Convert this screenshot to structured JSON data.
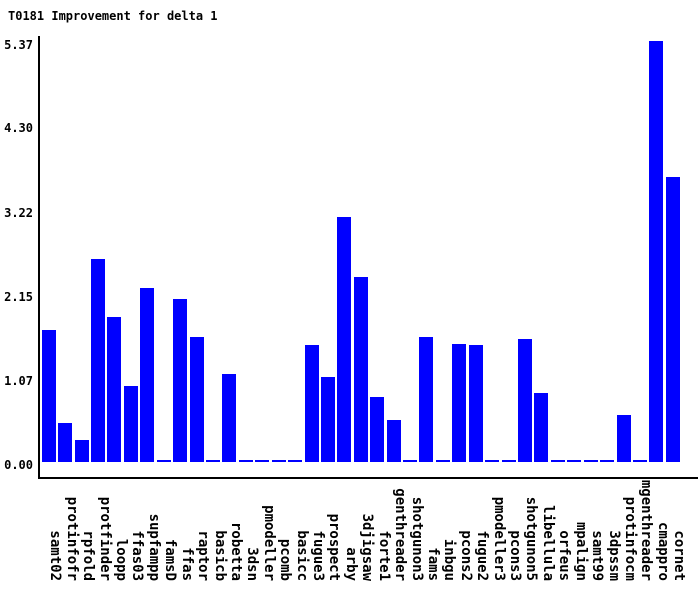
{
  "title": "T0181 Improvement for delta 1",
  "chart_data": {
    "type": "bar",
    "title": "T0181 Improvement for delta 1",
    "xlabel": "",
    "ylabel": "",
    "grid": false,
    "legend": "none",
    "ylim": [
      0,
      5.37
    ],
    "ytick_labels": [
      "0.00",
      "1.07",
      "2.15",
      "3.22",
      "4.30",
      "5.37"
    ],
    "bar_color": "#0000ff",
    "axis_color": "#000000",
    "categories": [
      "samt02",
      "protinfofr",
      "rpfold",
      "protfinder",
      "loopp",
      "ffas03",
      "supfampp",
      "famsD",
      "ffas",
      "raptor",
      "basicb",
      "robetta",
      "3dsn",
      "pmodeller",
      "pcomb",
      "basicc",
      "fugue3",
      "prospect",
      "arby",
      "3djigsaw",
      "forte1",
      "genthreader",
      "shotgunon3",
      "fams",
      "inbgu",
      "pcons2",
      "fugue2",
      "pmodeller3",
      "pcons3",
      "shotgunon5",
      "libellula",
      "orfeus",
      "mpalign",
      "samt99",
      "3dpssm",
      "protinfocm",
      "mgenthreader",
      "cmappro",
      "cornet"
    ],
    "values": [
      1.7,
      0.5,
      0.28,
      2.6,
      1.86,
      0.98,
      2.23,
      0.02,
      2.09,
      1.61,
      0.02,
      1.13,
      0.02,
      0.02,
      0.02,
      0.02,
      1.5,
      1.09,
      3.15,
      2.37,
      0.84,
      0.54,
      0.02,
      1.61,
      0.02,
      1.52,
      1.5,
      0.02,
      0.02,
      1.58,
      0.89,
      0.02,
      0.02,
      0.02,
      0.02,
      0.6,
      0.02,
      5.4,
      3.66
    ]
  }
}
